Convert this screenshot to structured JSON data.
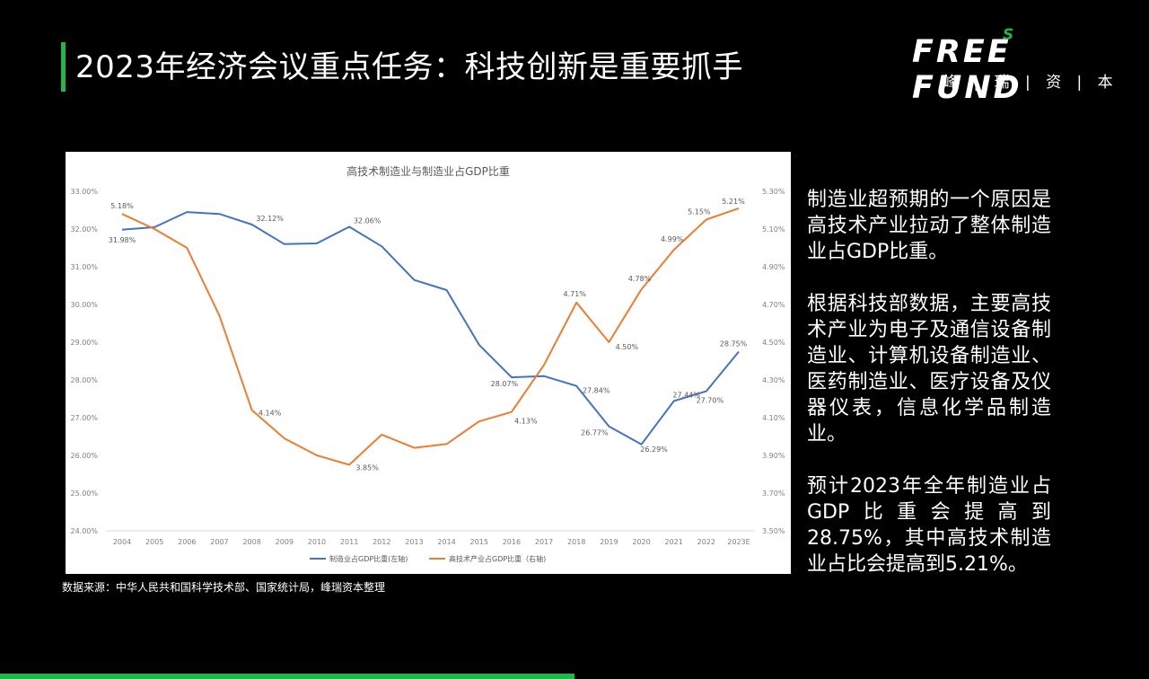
{
  "header": {
    "title": "2023年经济会议重点任务：科技创新是重要抓手"
  },
  "logo": {
    "word": "FREE FUND",
    "superscript": "S",
    "subtitle": "峰 | 瑞 | 资 | 本"
  },
  "source_note": "数据来源：中华人民共和国科学技术部、国家统计局，峰瑞资本整理",
  "side_text": {
    "p1": "制造业超预期的一个原因是高技术产业拉动了整体制造业占GDP比重。",
    "p2": "根据科技部数据，主要高技术产业为电子及通信设备制造业、计算机设备制造业、医药制造业、医疗设备及仪器仪表，信息化学品制造业。",
    "p3": "预计2023年全年制造业占GDP比重会提高到28.75%，其中高技术制造业占比会提高到5.21%。"
  },
  "colors": {
    "accent": "#1fb84a",
    "series_left": "#4472c4",
    "series_right": "#ed7d31"
  },
  "chart_data": {
    "type": "line",
    "title": "高技术制造业与制造业占GDP比重",
    "categories": [
      "2004",
      "2005",
      "2006",
      "2007",
      "2008",
      "2009",
      "2010",
      "2011",
      "2012",
      "2013",
      "2014",
      "2015",
      "2016",
      "2017",
      "2018",
      "2019",
      "2020",
      "2021",
      "2022",
      "2023E"
    ],
    "series": [
      {
        "name": "制造业占GDP比重(左轴)",
        "axis": "left",
        "color": "#4472c4",
        "values": [
          31.98,
          32.05,
          32.45,
          32.4,
          32.12,
          31.6,
          31.62,
          32.06,
          31.54,
          30.65,
          30.38,
          28.93,
          28.07,
          28.1,
          27.84,
          26.77,
          26.29,
          27.44,
          27.7,
          28.75
        ],
        "labels": {
          "0": "31.98%",
          "4": "32.12%",
          "7": "32.06%",
          "12": "28.07%",
          "14": "27.84%",
          "15": "26.77%",
          "16": "26.29%",
          "17": "27.44%",
          "18": "27.70%",
          "19": "28.75%"
        }
      },
      {
        "name": "高技术产业占GDP比重（右轴)",
        "axis": "right",
        "color": "#ed7d31",
        "values": [
          5.18,
          5.1,
          5.0,
          4.64,
          4.14,
          3.99,
          3.9,
          3.85,
          4.01,
          3.94,
          3.96,
          4.08,
          4.13,
          4.38,
          4.71,
          4.5,
          4.78,
          4.99,
          5.15,
          5.21
        ],
        "labels": {
          "0": "5.18%",
          "4": "4.14%",
          "7": "3.85%",
          "12": "4.13%",
          "14": "4.71%",
          "15": "4.50%",
          "16": "4.78%",
          "17": "4.99%",
          "18": "5.15%",
          "19": "5.21%"
        }
      }
    ],
    "y_left": {
      "min": 24,
      "max": 33,
      "ticks": [
        "24.00%",
        "25.00%",
        "26.00%",
        "27.00%",
        "28.00%",
        "29.00%",
        "30.00%",
        "31.00%",
        "32.00%",
        "33.00%"
      ]
    },
    "y_right": {
      "min": 3.5,
      "max": 5.3,
      "ticks": [
        "3.50%",
        "3.70%",
        "3.90%",
        "4.10%",
        "4.30%",
        "4.50%",
        "4.70%",
        "4.90%",
        "5.10%",
        "5.30%"
      ]
    },
    "grid": false,
    "legend_position": "bottom"
  }
}
